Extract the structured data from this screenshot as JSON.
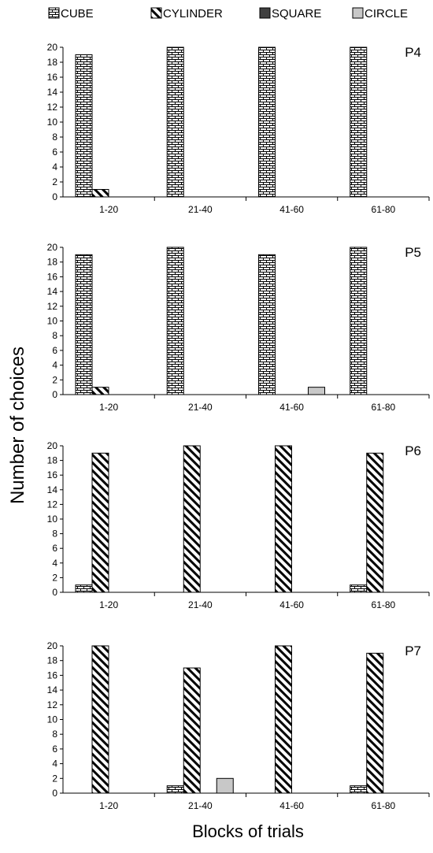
{
  "legend": {
    "items": [
      {
        "label": "CUBE",
        "pattern": "brick"
      },
      {
        "label": "CYLINDER",
        "pattern": "diagonal"
      },
      {
        "label": "SQUARE",
        "pattern": "solid-dark"
      },
      {
        "label": "CIRCLE",
        "pattern": "solid-light"
      }
    ]
  },
  "y_axis_label": "Number of choices",
  "x_axis_label": "Blocks of trials",
  "colors": {
    "square": "#404040",
    "circle": "#c8c8c8",
    "stroke": "#000000"
  },
  "chart_data": [
    {
      "type": "bar",
      "title": "P4",
      "categories": [
        "1-20",
        "21-40",
        "41-60",
        "61-80"
      ],
      "ylim": [
        0,
        20
      ],
      "yticks": [
        0,
        2,
        4,
        6,
        8,
        10,
        12,
        14,
        16,
        18,
        20
      ],
      "xlabel": "Blocks of trials",
      "ylabel": "Number of choices",
      "series": [
        {
          "name": "CUBE",
          "values": [
            19,
            20,
            20,
            20
          ]
        },
        {
          "name": "CYLINDER",
          "values": [
            1,
            0,
            0,
            0
          ]
        },
        {
          "name": "SQUARE",
          "values": [
            0,
            0,
            0,
            0
          ]
        },
        {
          "name": "CIRCLE",
          "values": [
            0,
            0,
            0,
            0
          ]
        }
      ]
    },
    {
      "type": "bar",
      "title": "P5",
      "categories": [
        "1-20",
        "21-40",
        "41-60",
        "61-80"
      ],
      "ylim": [
        0,
        20
      ],
      "yticks": [
        0,
        2,
        4,
        6,
        8,
        10,
        12,
        14,
        16,
        18,
        20
      ],
      "xlabel": "Blocks of trials",
      "ylabel": "Number of choices",
      "series": [
        {
          "name": "CUBE",
          "values": [
            19,
            20,
            19,
            20
          ]
        },
        {
          "name": "CYLINDER",
          "values": [
            1,
            0,
            0,
            0
          ]
        },
        {
          "name": "SQUARE",
          "values": [
            0,
            0,
            0,
            0
          ]
        },
        {
          "name": "CIRCLE",
          "values": [
            0,
            0,
            1,
            0
          ]
        }
      ]
    },
    {
      "type": "bar",
      "title": "P6",
      "categories": [
        "1-20",
        "21-40",
        "41-60",
        "61-80"
      ],
      "ylim": [
        0,
        20
      ],
      "yticks": [
        0,
        2,
        4,
        6,
        8,
        10,
        12,
        14,
        16,
        18,
        20
      ],
      "xlabel": "Blocks of trials",
      "ylabel": "Number of choices",
      "series": [
        {
          "name": "CUBE",
          "values": [
            1,
            0,
            0,
            1
          ]
        },
        {
          "name": "CYLINDER",
          "values": [
            19,
            20,
            20,
            19
          ]
        },
        {
          "name": "SQUARE",
          "values": [
            0,
            0,
            0,
            0
          ]
        },
        {
          "name": "CIRCLE",
          "values": [
            0,
            0,
            0,
            0
          ]
        }
      ]
    },
    {
      "type": "bar",
      "title": "P7",
      "categories": [
        "1-20",
        "21-40",
        "41-60",
        "61-80"
      ],
      "ylim": [
        0,
        20
      ],
      "yticks": [
        0,
        2,
        4,
        6,
        8,
        10,
        12,
        14,
        16,
        18,
        20
      ],
      "xlabel": "Blocks of trials",
      "ylabel": "Number of choices",
      "series": [
        {
          "name": "CUBE",
          "values": [
            0,
            1,
            0,
            1
          ]
        },
        {
          "name": "CYLINDER",
          "values": [
            20,
            17,
            20,
            19
          ]
        },
        {
          "name": "SQUARE",
          "values": [
            0,
            0,
            0,
            0
          ]
        },
        {
          "name": "CIRCLE",
          "values": [
            0,
            2,
            0,
            0
          ]
        }
      ]
    }
  ]
}
